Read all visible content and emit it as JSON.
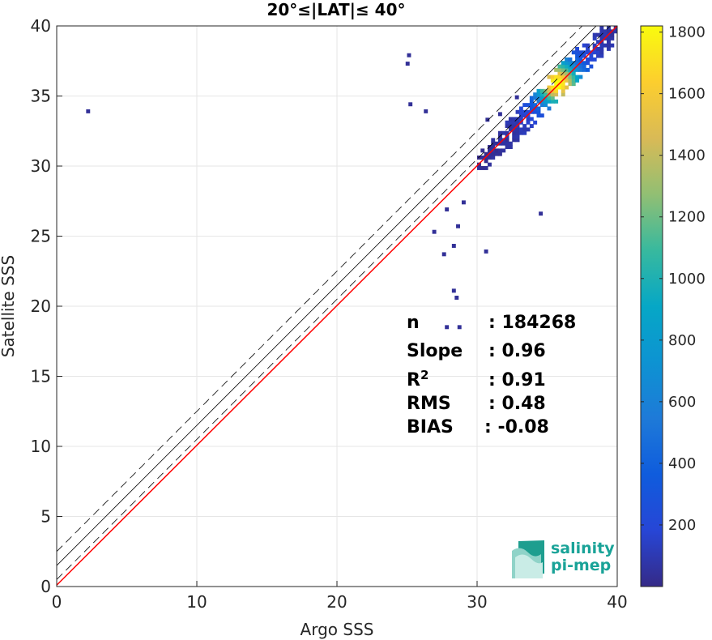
{
  "chart_data": {
    "type": "heatmap",
    "title": "20°≤|LAT|≤ 40°",
    "xlabel": "Argo SSS",
    "ylabel": "Satellite SSS",
    "xlim": [
      0,
      40
    ],
    "ylim": [
      0,
      40
    ],
    "xticks": [
      0,
      10,
      20,
      30,
      40
    ],
    "yticks": [
      0,
      5,
      10,
      15,
      20,
      25,
      30,
      35,
      40
    ],
    "grid": true,
    "colorbar": {
      "colormap": "parula",
      "range": [
        0,
        1820
      ],
      "ticks": [
        200,
        400,
        600,
        800,
        1000,
        1200,
        1400,
        1600,
        1800
      ]
    },
    "lines": [
      {
        "kind": "identity",
        "color": "#000000",
        "style": "solid",
        "x": [
          0,
          40
        ],
        "y": [
          1.5,
          41.5
        ]
      },
      {
        "kind": "upper-bound",
        "color": "#000000",
        "style": "dashed",
        "x": [
          0,
          40
        ],
        "y": [
          2.5,
          42.5
        ]
      },
      {
        "kind": "lower-bound",
        "color": "#000000",
        "style": "dashed",
        "x": [
          0,
          40
        ],
        "y": [
          0.5,
          40.5
        ]
      },
      {
        "kind": "regression",
        "color": "#ff0000",
        "style": "solid",
        "x": [
          0,
          40
        ],
        "y": [
          0.1,
          40
        ]
      }
    ],
    "density": {
      "peak": {
        "x": 35.6,
        "y": 35.8,
        "count": 1800
      },
      "main_cluster": {
        "x_range": [
          30,
          40
        ],
        "y_range": [
          29,
          40
        ]
      },
      "outliers": [
        {
          "x": 2.1,
          "y": 33.8
        },
        {
          "x": 25,
          "y": 37.8
        },
        {
          "x": 24.9,
          "y": 37.2
        },
        {
          "x": 25.1,
          "y": 34.3
        },
        {
          "x": 26.2,
          "y": 33.8
        },
        {
          "x": 28.2,
          "y": 21
        },
        {
          "x": 28.4,
          "y": 20.5
        },
        {
          "x": 27.5,
          "y": 23.6
        },
        {
          "x": 28.2,
          "y": 24.2
        },
        {
          "x": 28.5,
          "y": 25.6
        },
        {
          "x": 30.5,
          "y": 23.8
        },
        {
          "x": 26.8,
          "y": 25.2
        },
        {
          "x": 28.9,
          "y": 27.3
        },
        {
          "x": 34.4,
          "y": 26.5
        },
        {
          "x": 27.7,
          "y": 18.4
        },
        {
          "x": 28.6,
          "y": 18.4
        },
        {
          "x": 31.5,
          "y": 33.6
        },
        {
          "x": 32.7,
          "y": 34.8
        },
        {
          "x": 30.6,
          "y": 33.2
        },
        {
          "x": 27.7,
          "y": 26.8
        }
      ]
    },
    "stats": [
      {
        "label": "n",
        "value": ": 184268"
      },
      {
        "label": "Slope",
        "value": ": 0.96"
      },
      {
        "label": "R",
        "sup": "2",
        "value": ": 0.91"
      },
      {
        "label": "RMS",
        "value": ": 0.48"
      },
      {
        "label": "BIAS",
        "value": ": -0.08"
      }
    ]
  },
  "logo": {
    "line1": "salinity",
    "line2": "pi-mep",
    "color": "#1aa398"
  }
}
